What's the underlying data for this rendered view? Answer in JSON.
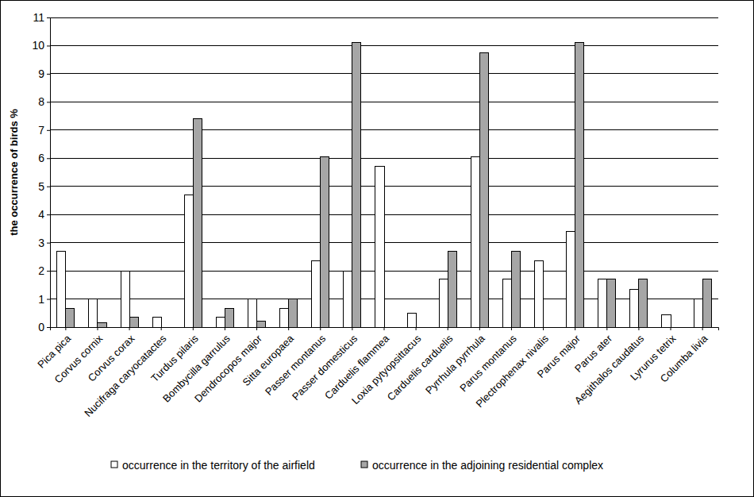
{
  "chart_data": {
    "type": "bar",
    "y_label": "the occurrence of birds %",
    "categories": [
      "Pica pica",
      "Corvus cornix",
      "Corvus corax",
      "Nucifraga caryocatactes",
      "Turdus pilaris",
      "Bombycilla garrulus",
      "Dendrocopos major",
      "Sitta europaea",
      "Passer montanus",
      "Passer domesticus",
      "Carduelis flammea",
      "Loxia pytyopsittacus",
      "Carduelis carduelis",
      "Pyrrhula pyrrhula",
      "Parus montanus",
      "Plectrophenax nivalis",
      "Parus major",
      "Parus ater",
      "Aegithalos caudatus",
      "Lyrurus tetrix",
      "Columba livia"
    ],
    "series": [
      {
        "name": "occurrence in the territory of the airfield",
        "color": "#ffffff",
        "values": [
          2.7,
          1.0,
          2.0,
          0.35,
          4.7,
          0.35,
          1.0,
          0.65,
          2.35,
          2.0,
          5.7,
          0.5,
          1.7,
          6.05,
          1.7,
          2.35,
          3.4,
          1.7,
          1.35,
          0.45,
          1.0
        ]
      },
      {
        "name": "occurrence in the adjoining residential complex",
        "color": "#a6a6a6",
        "values": [
          0.65,
          0.15,
          0.35,
          0,
          7.4,
          0.65,
          0.2,
          1.0,
          6.05,
          10.1,
          0,
          0,
          2.7,
          9.75,
          2.7,
          0,
          10.1,
          1.7,
          1.7,
          0,
          1.7
        ]
      }
    ],
    "ylim": [
      0,
      11
    ],
    "yticks": [
      0,
      1,
      2,
      3,
      4,
      5,
      6,
      7,
      8,
      9,
      10,
      11
    ],
    "grid": true,
    "legend": "bottom"
  }
}
